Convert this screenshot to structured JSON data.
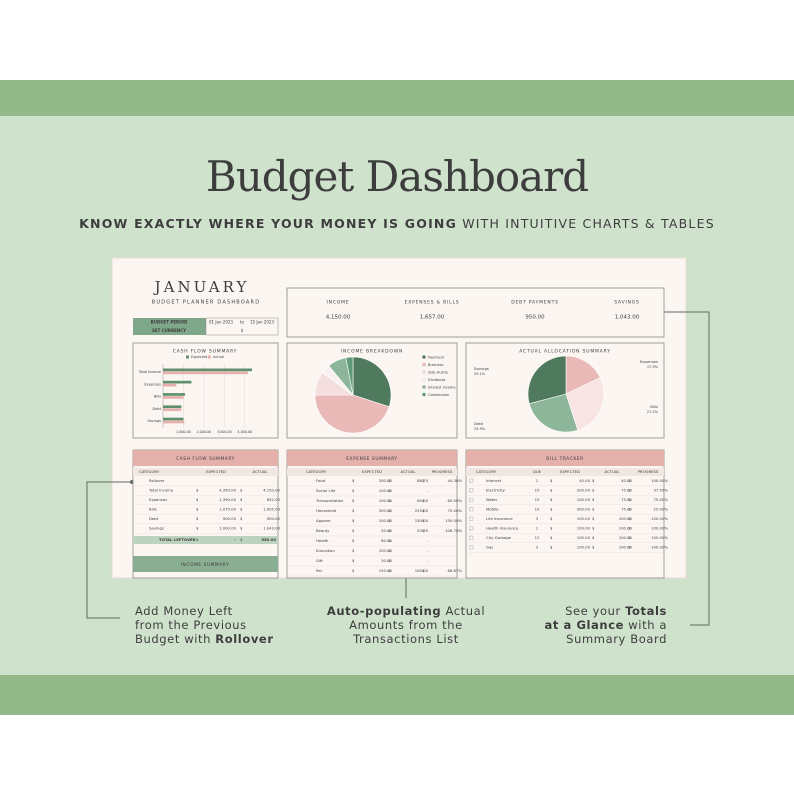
{
  "header": {
    "title": "Budget Dashboard",
    "tagline_bold": "KNOW EXACTLY WHERE YOUR MONEY IS GOING",
    "tagline_rest": "WITH INTUITIVE CHARTS & TABLES"
  },
  "sheet": {
    "month": "JANUARY",
    "subtitle": "BUDGET PLANNER DASHBOARD",
    "period": {
      "label": "BUDGET PERIOD",
      "start": "01 Jan 2023",
      "separator": "to",
      "end": "15 Jan 2023"
    },
    "currency": {
      "label": "SET CURRENCY",
      "symbol": "$"
    },
    "summary": [
      {
        "label": "INCOME",
        "value": "4,150.00"
      },
      {
        "label": "EXPENSES & BILLS",
        "value": "1,657.00"
      },
      {
        "label": "DEBT PAYMENTS",
        "value": "950.00"
      },
      {
        "label": "SAVINGS",
        "value": "1,043.00"
      }
    ],
    "cash_flow_chart": {
      "type": "bar",
      "title": "CASH FLOW SUMMARY",
      "categories": [
        "Total Income",
        "Expenses",
        "Bills",
        "Debt",
        "Savings"
      ],
      "series": [
        {
          "name": "Expected",
          "color": "#5f8f6d",
          "values": [
            4350,
            1390,
            1075,
            900,
            1000
          ]
        },
        {
          "name": "Actual",
          "color": "#e6b0ae",
          "values": [
            4150,
            652,
            1005,
            900,
            1043
          ]
        }
      ],
      "xlim": [
        0,
        4500
      ],
      "xticks": [
        {
          "value": 1000,
          "label": "1,000.00"
        },
        {
          "value": 2000,
          "label": "2,000.00"
        },
        {
          "value": 3000,
          "label": "3,000.00"
        },
        {
          "value": 4000,
          "label": "4,000.00"
        }
      ]
    },
    "income_chart": {
      "type": "pie",
      "title": "INCOME BREAKDOWN",
      "slices": [
        {
          "name": "Paycheck",
          "value": 30,
          "color": "#4f7a5d"
        },
        {
          "name": "Business",
          "value": 45,
          "color": "#e9b9b7"
        },
        {
          "name": "Side Hustle",
          "value": 10,
          "color": "#f5dede"
        },
        {
          "name": "Dividends",
          "value": 4,
          "color": "#f9f1ef"
        },
        {
          "name": "Interest Income",
          "value": 8,
          "color": "#8db59a"
        },
        {
          "name": "Commission",
          "value": 3,
          "color": "#5f9a78"
        }
      ]
    },
    "allocation_chart": {
      "type": "pie",
      "title": "ACTUAL ALLOCATION SUMMARY",
      "slices": [
        {
          "name": "Expenses",
          "value": 17.9,
          "label": "17.9%",
          "color": "#e9b9b7"
        },
        {
          "name": "Bills",
          "value": 27.1,
          "label": "27.1%",
          "color": "#f7e4e3"
        },
        {
          "name": "Debt",
          "value": 25.9,
          "label": "25.9%",
          "color": "#8db59a"
        },
        {
          "name": "Savings",
          "value": 29.1,
          "label": "29.1%",
          "color": "#4f7a5d"
        }
      ]
    },
    "cash_flow_table": {
      "title": "CASH FLOW SUMMARY",
      "columns": [
        "CATEGORY",
        "EXPECTED",
        "ACTUAL"
      ],
      "rows": [
        [
          "Rollover",
          "",
          ""
        ],
        [
          "Total Income",
          "4,350.00",
          "4,150.00"
        ],
        [
          "Expenses",
          "1,390.00",
          "652.00"
        ],
        [
          "Bills",
          "1,075.00",
          "1,005.00"
        ],
        [
          "Debt",
          "900.00",
          "900.00"
        ],
        [
          "Savings",
          "1,000.00",
          "1,043.00"
        ]
      ],
      "total": [
        "TOTAL LEFTOVER",
        "-",
        "550.00"
      ]
    },
    "income_summary": {
      "title": "INCOME SUMMARY"
    },
    "expense_table": {
      "title": "EXPENSE SUMMARY",
      "columns": [
        "CATEGORY",
        "EXPECTED",
        "ACTUAL",
        "PROGRESS"
      ],
      "rows": [
        [
          "Food",
          "200.00",
          "88.75",
          "44.38%"
        ],
        [
          "Social Life",
          "100.00",
          "-",
          ""
        ],
        [
          "Transportation",
          "100.00",
          "60.00",
          "60.00%"
        ],
        [
          "Household",
          "300.00",
          "225.00",
          "75.00%"
        ],
        [
          "Apparel",
          "100.00",
          "150.00",
          "150.00%"
        ],
        [
          "Beauty",
          "50.00",
          "53.35",
          "106.70%"
        ],
        [
          "Health",
          "80.00",
          "-",
          ""
        ],
        [
          "Education",
          "100.00",
          "-",
          ""
        ],
        [
          "Gift",
          "30.00",
          "-",
          ""
        ],
        [
          "Pet",
          "150.00",
          "100.00",
          "66.67%"
        ]
      ]
    },
    "bill_table": {
      "title": "BILL TRACKER",
      "columns": [
        "CATEGORY",
        "DUE",
        "EXPECTED",
        "ACTUAL",
        "PROGRESS"
      ],
      "rows": [
        [
          "Internet",
          "1",
          "40.00",
          "40.00",
          "100.00%"
        ],
        [
          "Electricity",
          "15",
          "200.00",
          "75.00",
          "37.50%"
        ],
        [
          "Water",
          "15",
          "100.00",
          "75.00",
          "75.00%"
        ],
        [
          "Mobile",
          "10",
          "300.00",
          "75.00",
          "25.00%"
        ],
        [
          "Life Insurance",
          "3",
          "100.00",
          "100.00",
          "100.00%"
        ],
        [
          "Health Insurance",
          "1",
          "100.00",
          "100.00",
          "100.00%"
        ],
        [
          "City Garbage",
          "12",
          "100.00",
          "100.00",
          "100.00%"
        ],
        [
          "Gas",
          "3",
          "100.00",
          "100.00",
          "100.00%"
        ]
      ]
    }
  },
  "callouts": [
    {
      "lines": [
        [
          {
            "text": "Add Money Left",
            "bold": false
          }
        ],
        [
          {
            "text": "from the Previous",
            "bold": false
          }
        ],
        [
          {
            "text": "Budget with ",
            "bold": false
          },
          {
            "text": "Rollover",
            "bold": true
          }
        ]
      ]
    },
    {
      "lines": [
        [
          {
            "text": "Auto-populating",
            "bold": true
          },
          {
            "text": " Actual",
            "bold": false
          }
        ],
        [
          {
            "text": "Amounts from the",
            "bold": false
          }
        ],
        [
          {
            "text": "Transactions List",
            "bold": false
          }
        ]
      ]
    },
    {
      "lines": [
        [
          {
            "text": "See your ",
            "bold": false
          },
          {
            "text": "Totals",
            "bold": true
          }
        ],
        [
          {
            "text": "at a Glance",
            "bold": true
          },
          {
            "text": " with a",
            "bold": false
          }
        ],
        [
          {
            "text": "Summary Board",
            "bold": false
          }
        ]
      ]
    }
  ]
}
